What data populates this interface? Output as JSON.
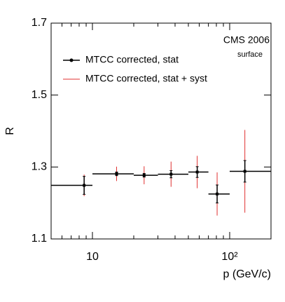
{
  "chart_data": {
    "type": "errorbar",
    "annotations": [
      "CMS 2006",
      "surface"
    ],
    "xlabel": "p (GeV/c)",
    "ylabel": "R",
    "log_x": true,
    "xlim": [
      5,
      200
    ],
    "ylim": [
      1.1,
      1.7
    ],
    "xticks": [
      10,
      {
        "value": 100,
        "label": "10²"
      }
    ],
    "xminorticks": [
      5,
      6,
      7,
      8,
      9,
      20,
      30,
      40,
      50,
      60,
      70,
      80,
      90,
      200
    ],
    "yticks": [
      1.1,
      1.3,
      1.5,
      1.7
    ],
    "x": [
      8.7,
      15,
      23.8,
      37.4,
      58,
      81,
      129
    ],
    "bins": [
      5,
      10,
      20,
      30,
      50,
      70,
      100,
      200
    ],
    "series": [
      {
        "name": "MTCC corrected, stat",
        "color": "#000000",
        "values": [
          1.249,
          1.281,
          1.277,
          1.28,
          1.286,
          1.225,
          1.288
        ],
        "errors": [
          0.025,
          0.005,
          0.005,
          0.01,
          0.015,
          0.025,
          0.03
        ]
      },
      {
        "name": "MTCC corrected, stat + syst",
        "color": "#e03030",
        "values": [
          1.249,
          1.281,
          1.277,
          1.28,
          1.286,
          1.225,
          1.288
        ],
        "errors": [
          0.03,
          0.02,
          0.025,
          0.035,
          0.045,
          0.06,
          0.115
        ]
      }
    ]
  }
}
